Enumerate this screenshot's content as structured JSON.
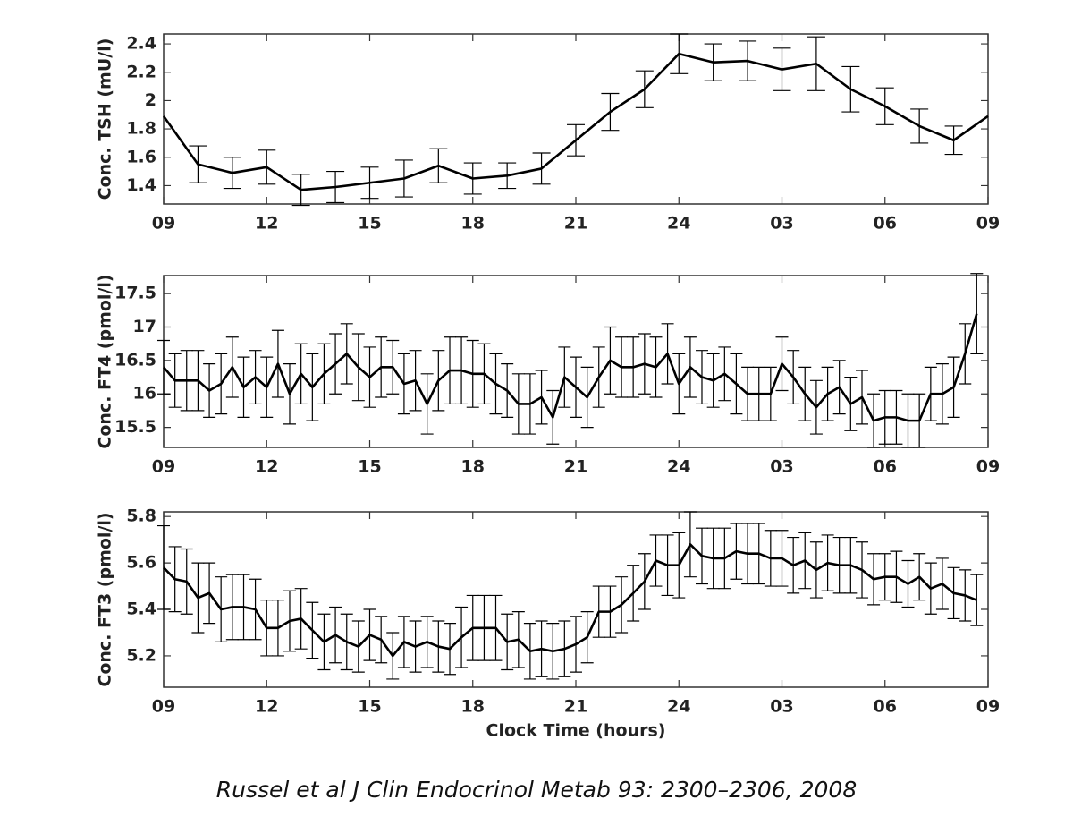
{
  "chart_data": [
    {
      "type": "line",
      "ylabel": "Conc. TSH (mU/l)",
      "color": "#000000",
      "x": [
        9,
        10,
        11,
        12,
        13,
        14,
        15,
        16,
        17,
        18,
        19,
        20,
        21,
        22,
        23,
        24,
        25,
        26,
        27,
        28,
        29,
        30,
        31,
        32,
        33
      ],
      "values": [
        1.89,
        1.55,
        1.49,
        1.53,
        1.37,
        1.39,
        1.42,
        1.45,
        1.54,
        1.45,
        1.47,
        1.52,
        1.72,
        1.92,
        2.08,
        2.33,
        2.27,
        2.28,
        2.22,
        2.26,
        2.08,
        1.96,
        1.82,
        1.72,
        1.89
      ],
      "errors": [
        null,
        0.13,
        0.11,
        0.12,
        0.11,
        0.11,
        0.11,
        0.13,
        0.12,
        0.11,
        0.09,
        0.11,
        0.11,
        0.13,
        0.13,
        0.14,
        0.13,
        0.14,
        0.15,
        0.19,
        0.16,
        0.13,
        0.12,
        0.1,
        null
      ],
      "xlim": [
        9,
        33
      ],
      "xticks": [
        {
          "value": 9,
          "label": "09"
        },
        12,
        15,
        18,
        21,
        24,
        {
          "value": 27,
          "label": "03"
        },
        {
          "value": 30,
          "label": "06"
        },
        {
          "value": 33,
          "label": "09"
        }
      ],
      "ylim": [
        1.27,
        2.47
      ],
      "yticks": [
        1.4,
        1.6,
        1.8,
        2,
        2.2,
        2.4
      ]
    },
    {
      "type": "line",
      "ylabel": "Conc. FT4 (pmol/l)",
      "color": "#000000",
      "x": [
        9,
        9.33,
        9.67,
        10,
        10.33,
        10.67,
        11,
        11.33,
        11.67,
        12,
        12.33,
        12.67,
        13,
        13.33,
        13.67,
        14,
        14.33,
        14.67,
        15,
        15.33,
        15.67,
        16,
        16.33,
        16.67,
        17,
        17.33,
        17.67,
        18,
        18.33,
        18.67,
        19,
        19.33,
        19.67,
        20,
        20.33,
        20.67,
        21,
        21.33,
        21.67,
        22,
        22.33,
        22.67,
        23,
        23.33,
        23.67,
        24,
        24.33,
        24.67,
        25,
        25.33,
        25.67,
        26,
        26.33,
        26.67,
        27,
        27.33,
        27.67,
        28,
        28.33,
        28.67,
        29,
        29.33,
        29.67,
        30,
        30.33,
        30.67,
        31,
        31.33,
        31.67,
        32,
        32.33,
        32.67
      ],
      "values": [
        16.4,
        16.2,
        16.2,
        16.2,
        16.05,
        16.15,
        16.4,
        16.1,
        16.25,
        16.1,
        16.45,
        16.0,
        16.3,
        16.1,
        16.3,
        16.45,
        16.6,
        16.4,
        16.25,
        16.4,
        16.4,
        16.15,
        16.2,
        15.85,
        16.2,
        16.35,
        16.35,
        16.3,
        16.3,
        16.15,
        16.05,
        15.85,
        15.85,
        15.95,
        15.65,
        16.25,
        16.1,
        15.95,
        16.25,
        16.5,
        16.4,
        16.4,
        16.45,
        16.4,
        16.6,
        16.15,
        16.4,
        16.25,
        16.2,
        16.3,
        16.15,
        16.0,
        16.0,
        16.0,
        16.45,
        16.25,
        16.0,
        15.8,
        16.0,
        16.1,
        15.85,
        15.95,
        15.6,
        15.65,
        15.65,
        15.6,
        15.6,
        16.0,
        16.0,
        16.1,
        16.6,
        17.2
      ],
      "errors": [
        0.4,
        0.4,
        0.45,
        0.45,
        0.4,
        0.45,
        0.45,
        0.45,
        0.4,
        0.45,
        0.5,
        0.45,
        0.45,
        0.5,
        0.45,
        0.45,
        0.45,
        0.5,
        0.45,
        0.45,
        0.4,
        0.45,
        0.45,
        0.45,
        0.45,
        0.5,
        0.5,
        0.5,
        0.45,
        0.45,
        0.4,
        0.45,
        0.45,
        0.4,
        0.4,
        0.45,
        0.45,
        0.45,
        0.45,
        0.5,
        0.45,
        0.45,
        0.45,
        0.45,
        0.45,
        0.45,
        0.45,
        0.4,
        0.4,
        0.4,
        0.45,
        0.4,
        0.4,
        0.4,
        0.4,
        0.4,
        0.4,
        0.4,
        0.4,
        0.4,
        0.4,
        0.4,
        0.4,
        0.4,
        0.4,
        0.4,
        0.4,
        0.4,
        0.45,
        0.45,
        0.45,
        0.6
      ],
      "xlim": [
        9,
        33
      ],
      "xticks": [
        {
          "value": 9,
          "label": "09"
        },
        12,
        15,
        18,
        21,
        24,
        {
          "value": 27,
          "label": "03"
        },
        {
          "value": 30,
          "label": "06"
        },
        {
          "value": 33,
          "label": "09"
        }
      ],
      "ylim": [
        15.2,
        17.77
      ],
      "yticks": [
        15.5,
        16,
        16.5,
        17,
        17.5
      ]
    },
    {
      "type": "line",
      "ylabel": "Conc. FT3 (pmol/l)",
      "xlabel": "Clock Time (hours)",
      "color": "#000000",
      "x": [
        9,
        9.33,
        9.67,
        10,
        10.33,
        10.67,
        11,
        11.33,
        11.67,
        12,
        12.33,
        12.67,
        13,
        13.33,
        13.67,
        14,
        14.33,
        14.67,
        15,
        15.33,
        15.67,
        16,
        16.33,
        16.67,
        17,
        17.33,
        17.67,
        18,
        18.33,
        18.67,
        19,
        19.33,
        19.67,
        20,
        20.33,
        20.67,
        21,
        21.33,
        21.67,
        22,
        22.33,
        22.67,
        23,
        23.33,
        23.67,
        24,
        24.33,
        24.67,
        25,
        25.33,
        25.67,
        26,
        26.33,
        26.67,
        27,
        27.33,
        27.67,
        28,
        28.33,
        28.67,
        29,
        29.33,
        29.67,
        30,
        30.33,
        30.67,
        31,
        31.33,
        31.67,
        32,
        32.33,
        32.67
      ],
      "values": [
        5.58,
        5.53,
        5.52,
        5.45,
        5.47,
        5.4,
        5.41,
        5.41,
        5.4,
        5.32,
        5.32,
        5.35,
        5.36,
        5.31,
        5.26,
        5.29,
        5.26,
        5.24,
        5.29,
        5.27,
        5.2,
        5.26,
        5.24,
        5.26,
        5.24,
        5.23,
        5.28,
        5.32,
        5.32,
        5.32,
        5.26,
        5.27,
        5.22,
        5.23,
        5.22,
        5.23,
        5.25,
        5.28,
        5.39,
        5.39,
        5.42,
        5.47,
        5.52,
        5.61,
        5.59,
        5.59,
        5.68,
        5.63,
        5.62,
        5.62,
        5.65,
        5.64,
        5.64,
        5.62,
        5.62,
        5.59,
        5.61,
        5.57,
        5.6,
        5.59,
        5.59,
        5.57,
        5.53,
        5.54,
        5.54,
        5.51,
        5.54,
        5.49,
        5.51,
        5.47,
        5.46,
        5.44
      ],
      "errors": [
        0.18,
        0.14,
        0.14,
        0.15,
        0.13,
        0.14,
        0.14,
        0.14,
        0.13,
        0.12,
        0.12,
        0.13,
        0.13,
        0.12,
        0.12,
        0.12,
        0.12,
        0.11,
        0.11,
        0.1,
        0.1,
        0.11,
        0.11,
        0.11,
        0.11,
        0.11,
        0.13,
        0.14,
        0.14,
        0.14,
        0.12,
        0.12,
        0.12,
        0.12,
        0.12,
        0.12,
        0.12,
        0.11,
        0.11,
        0.11,
        0.12,
        0.12,
        0.12,
        0.11,
        0.13,
        0.14,
        0.14,
        0.12,
        0.13,
        0.13,
        0.12,
        0.13,
        0.13,
        0.12,
        0.12,
        0.12,
        0.12,
        0.12,
        0.12,
        0.12,
        0.12,
        0.12,
        0.11,
        0.1,
        0.11,
        0.1,
        0.1,
        0.11,
        0.11,
        0.11,
        0.11,
        0.11
      ],
      "xlim": [
        9,
        33
      ],
      "xticks": [
        {
          "value": 9,
          "label": "09"
        },
        12,
        15,
        18,
        21,
        24,
        {
          "value": 27,
          "label": "03"
        },
        {
          "value": 30,
          "label": "06"
        },
        {
          "value": 33,
          "label": "09"
        }
      ],
      "ylim": [
        5.065,
        5.82
      ],
      "yticks": [
        5.2,
        5.4,
        5.6,
        5.8
      ]
    }
  ],
  "caption": "Russel et al J Clin Endocrinol Metab 93: 2300–2306, 2008"
}
